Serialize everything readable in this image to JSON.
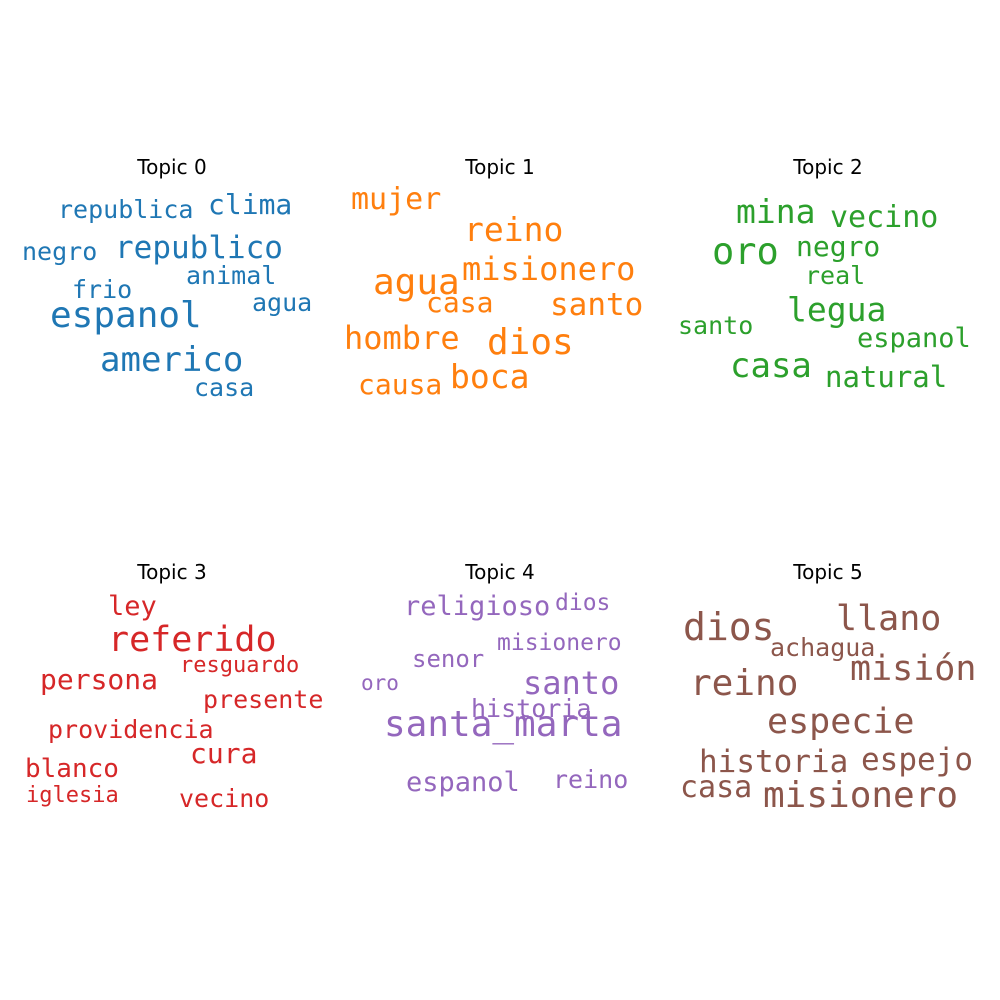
{
  "chart_data": {
    "type": "wordcloud",
    "panels": [
      {
        "title": "Topic 0",
        "color": "#1f77b4",
        "words": [
          "republica",
          "clima",
          "negro",
          "republico",
          "animal",
          "frio",
          "agua",
          "espanol",
          "americo",
          "casa"
        ]
      },
      {
        "title": "Topic 1",
        "color": "#ff7f0e",
        "words": [
          "mujer",
          "reino",
          "agua",
          "misionero",
          "casa",
          "santo",
          "hombre",
          "dios",
          "causa",
          "boca"
        ]
      },
      {
        "title": "Topic 2",
        "color": "#2ca02c",
        "words": [
          "mina",
          "vecino",
          "oro",
          "negro",
          "real",
          "legua",
          "santo",
          "espanol",
          "casa",
          "natural"
        ]
      },
      {
        "title": "Topic 3",
        "color": "#d62728",
        "words": [
          "ley",
          "referido",
          "resguardo",
          "persona",
          "presente",
          "providencia",
          "cura",
          "blanco",
          "iglesia",
          "vecino"
        ]
      },
      {
        "title": "Topic 4",
        "color": "#9467bd",
        "words": [
          "religioso",
          "dios",
          "misionero",
          "senor",
          "santo",
          "oro",
          "historia",
          "santa_marta",
          "espanol",
          "reino"
        ]
      },
      {
        "title": "Topic 5",
        "color": "#8c564b",
        "words": [
          "dios",
          "llano",
          "achagua",
          "misión",
          "reino",
          "especie",
          "historia",
          "espejo",
          "casa",
          "misionero"
        ]
      }
    ]
  }
}
